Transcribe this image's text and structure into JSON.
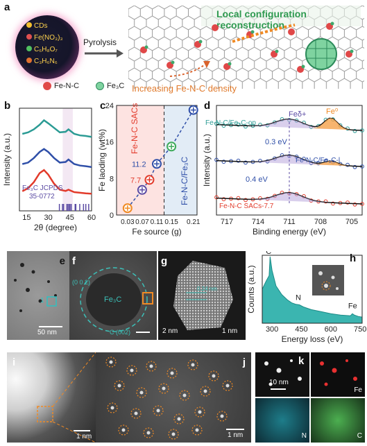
{
  "panels": {
    "a": {
      "label": "a",
      "precursors": [
        "CDs",
        "Fe(NO₃)₃",
        "C₆H₈O₇",
        "C₃H₆N₆"
      ],
      "arrow_label": "Pyrolysis",
      "title": "Local configuration reconstruction",
      "caption": "Increasing Fe-N-C density",
      "legend_fenc": "Fe-N-C",
      "legend_fe3c": "Fe₃C"
    },
    "b": {
      "label": "b",
      "ylabel": "Intensity (a.u.)",
      "xlabel": "2θ (degree)",
      "ref_line1": "Fe₃C JCPDS",
      "ref_line2": "35-0772",
      "xticks": [
        "15",
        "30",
        "45",
        "60"
      ]
    },
    "c": {
      "label": "c",
      "ylabel": "Fe laoding (wt%)",
      "xlabel": "Fe source (g)",
      "region_left": "Fe-N-C SACs",
      "region_right": "Fe-N-C/Fe₃C",
      "ann1": "11.2",
      "ann2": "7.7",
      "yticks": [
        "0",
        "8",
        "16",
        "24"
      ],
      "xticks": [
        "0.03",
        "0.07",
        "0.11",
        "0.15",
        "0.21"
      ]
    },
    "d": {
      "label": "d",
      "ylabel": "Intensity (a.u.)",
      "xlabel": "Binding energy (eV)",
      "series1": "Fe-N-C/Fe₃C-op",
      "series2": "Fe-N-C/Fe₃C-l",
      "series3": "Fe-N-C SACs-7.7",
      "peak1": "Feδ+",
      "peak2": "Fe⁰",
      "shift1": "0.3 eV",
      "shift2": "0.4 eV",
      "xticks": [
        "717",
        "714",
        "711",
        "708",
        "705"
      ]
    },
    "e": {
      "label": "e",
      "scale": "50 nm",
      "marker": "1"
    },
    "f": {
      "label": "f",
      "center": "Fe₃C",
      "ring_top": "(0 0 2)",
      "ring_bottom": "C (002)"
    },
    "g": {
      "label": "g",
      "scale_left": "2 nm",
      "scale_right": "1 nm",
      "spacing": "0.24 nm"
    },
    "h": {
      "label": "h",
      "ylabel": "Counts (a.u.)",
      "xlabel": "Energy loss (eV)",
      "peaks": [
        "C",
        "N",
        "Fe"
      ],
      "xticks": [
        "300",
        "450",
        "600",
        "750"
      ]
    },
    "i": {
      "label": "i",
      "scale": "1 nm"
    },
    "j": {
      "label": "j",
      "scale": "1 nm"
    },
    "k": {
      "label": "k",
      "scale": "10 nm",
      "maps": [
        "Fe",
        "N",
        "C"
      ]
    }
  },
  "colors": {
    "teal": "#2b9b94",
    "blue": "#2f4fa8",
    "red": "#e23a2a",
    "purple": "#5b4ba3",
    "orange": "#f08a24",
    "green": "#3daa5a",
    "eels_fill": "#3bb5b0"
  },
  "chart_data": [
    {
      "type": "line",
      "panel": "b",
      "title": "",
      "xlabel": "2θ (degree)",
      "ylabel": "Intensity (a.u.)",
      "xlim": [
        10,
        60
      ],
      "series": [
        {
          "color": "#2b9b94",
          "x": [
            12,
            16,
            20,
            24,
            27,
            30,
            34,
            38,
            42,
            44,
            48,
            52,
            56,
            60
          ],
          "y": [
            2.55,
            2.6,
            2.7,
            2.85,
            3.0,
            2.9,
            2.75,
            2.6,
            2.62,
            2.7,
            2.55,
            2.5,
            2.48,
            2.45
          ]
        },
        {
          "color": "#2f4fa8",
          "x": [
            12,
            16,
            20,
            24,
            27,
            30,
            34,
            38,
            42,
            44,
            48,
            52,
            56,
            60
          ],
          "y": [
            1.55,
            1.6,
            1.75,
            1.95,
            2.05,
            1.95,
            1.75,
            1.6,
            1.62,
            1.7,
            1.55,
            1.5,
            1.48,
            1.45
          ]
        },
        {
          "color": "#e23a2a",
          "x": [
            12,
            16,
            20,
            24,
            27,
            30,
            34,
            38,
            42,
            44,
            48,
            52,
            56,
            60
          ],
          "y": [
            0.65,
            0.75,
            0.95,
            1.25,
            1.35,
            1.2,
            0.9,
            0.7,
            0.66,
            0.7,
            0.62,
            0.6,
            0.58,
            0.57
          ]
        }
      ],
      "reference_sticks": [
        37.7,
        39.8,
        40.6,
        42.9,
        43.7,
        44.6,
        45.0,
        45.9,
        48.6,
        49.1,
        51.8,
        54.4,
        56.0,
        58.0
      ]
    },
    {
      "type": "scatter",
      "panel": "c",
      "title": "",
      "xlabel": "Fe source (g)",
      "ylabel": "Fe laoding (wt%)",
      "xlim": [
        0,
        0.22
      ],
      "ylim": [
        0,
        24
      ],
      "x": [
        0.03,
        0.07,
        0.09,
        0.11,
        0.15,
        0.21
      ],
      "y": [
        1.5,
        5.5,
        7.7,
        11.2,
        15.0,
        23.0
      ]
    },
    {
      "type": "scatter",
      "panel": "d",
      "title": "",
      "xlabel": "Binding energy (eV)",
      "ylabel": "Intensity (a.u.)",
      "xlim": [
        718,
        704
      ],
      "peaks": {
        "Fe_delta_plus": 711,
        "Fe_0": 707
      },
      "series": [
        {
          "name": "Fe-N-C/Fe₃C-op",
          "color": "#2b9b94"
        },
        {
          "name": "Fe-N-C/Fe₃C-l",
          "color": "#2f4fa8"
        },
        {
          "name": "Fe-N-C SACs-7.7",
          "color": "#e23a2a"
        }
      ]
    },
    {
      "type": "area",
      "panel": "h",
      "title": "",
      "xlabel": "Energy loss (eV)",
      "ylabel": "Counts (a.u.)",
      "xlim": [
        250,
        760
      ],
      "x": [
        250,
        270,
        285,
        290,
        300,
        320,
        350,
        380,
        400,
        420,
        440,
        460,
        500,
        550,
        600,
        650,
        700,
        710,
        720,
        740,
        760
      ],
      "y": [
        0.5,
        0.62,
        0.7,
        0.98,
        0.78,
        0.55,
        0.42,
        0.34,
        0.3,
        0.28,
        0.27,
        0.24,
        0.2,
        0.17,
        0.14,
        0.12,
        0.11,
        0.14,
        0.12,
        0.1,
        0.09
      ]
    }
  ]
}
